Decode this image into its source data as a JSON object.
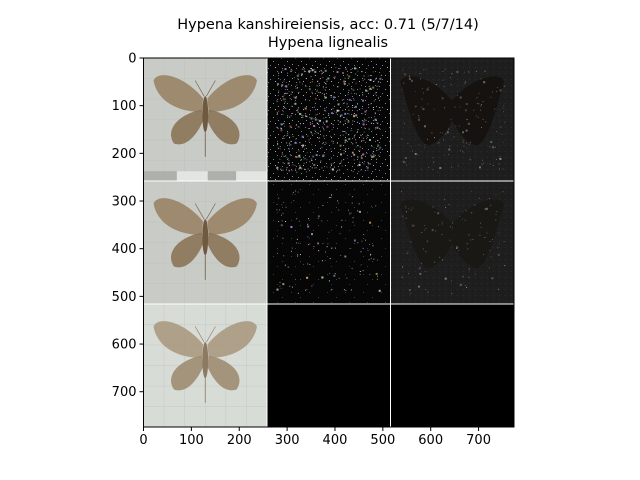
{
  "title": {
    "line1": "Hypena kanshireiensis, acc: 0.71 (5/7/14)",
    "line2": "Hypena lignealis"
  },
  "chart_data": {
    "type": "image-grid",
    "title": "Hypena kanshireiensis, acc: 0.71 (5/7/14)\nHypena lignealis",
    "xlim": [
      0,
      774
    ],
    "ylim": [
      774,
      0
    ],
    "x_ticks": [
      0,
      100,
      200,
      300,
      400,
      500,
      600,
      700
    ],
    "y_ticks": [
      0,
      100,
      200,
      300,
      400,
      500,
      600,
      700
    ],
    "grid": {
      "rows": 3,
      "cols": 3,
      "cell_size": 258,
      "cells": [
        {
          "row": 0,
          "col": 0,
          "kind": "moth-photo",
          "description": "moth specimen with spread wings"
        },
        {
          "row": 0,
          "col": 1,
          "kind": "saliency-color",
          "description": "noisy colored attribution map"
        },
        {
          "row": 0,
          "col": 2,
          "kind": "saliency-overlay",
          "description": "dark overlay showing moth silhouette"
        },
        {
          "row": 1,
          "col": 0,
          "kind": "moth-photo",
          "description": "moth specimen with spread wings"
        },
        {
          "row": 1,
          "col": 1,
          "kind": "saliency-color",
          "description": "sparse colored attribution map"
        },
        {
          "row": 1,
          "col": 2,
          "kind": "saliency-overlay",
          "description": "dark overlay showing moth silhouette"
        },
        {
          "row": 2,
          "col": 0,
          "kind": "moth-photo",
          "description": "pale blurry moth specimen"
        },
        {
          "row": 2,
          "col": 1,
          "kind": "empty",
          "description": "black"
        },
        {
          "row": 2,
          "col": 2,
          "kind": "empty",
          "description": "black"
        }
      ]
    },
    "colors": {
      "background": "#ffffff",
      "empty_cell": "#000000",
      "divider": "#ffffff",
      "photo_bg": "#c9cbc6",
      "moth_main": "#9a8466",
      "moth_dark": "#6f5a40"
    }
  }
}
